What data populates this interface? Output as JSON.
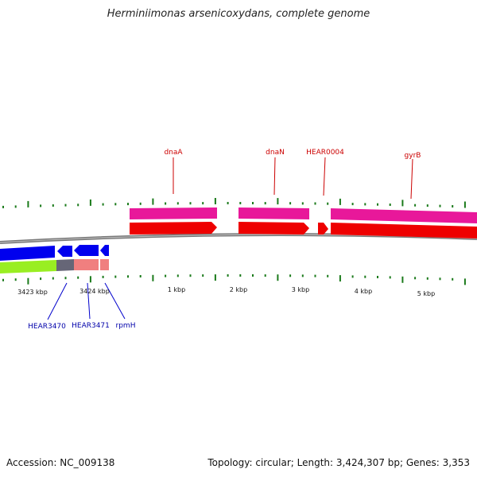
{
  "title": "Herminiimonas arsenicoxydans, complete genome",
  "footer": {
    "accession": "Accession: NC_009138",
    "summary": "Topology: circular; Length: 3,424,307 bp; Genes: 3,353"
  },
  "colors": {
    "forward_cds": "#ee0000",
    "forward_gene": "#e8189a",
    "reverse_cds": "#0000ee",
    "reverse_gene": "#99ee22",
    "trna_like": "#666677",
    "rpmH_band": "#f07f7f",
    "tick": "#1a7a1a",
    "backbone": "#888888",
    "forward_label": "#cc0000",
    "reverse_label": "#0000aa"
  },
  "scale_labels": [
    "3423 kbp",
    "3424 kbp",
    "1 kbp",
    "2 kbp",
    "3 kbp",
    "4 kbp",
    "5 kbp"
  ],
  "forward_labels": [
    {
      "name": "dnaA"
    },
    {
      "name": "dnaN"
    },
    {
      "name": "HEAR0004"
    },
    {
      "name": "gyrB"
    }
  ],
  "reverse_labels": [
    {
      "name": "HEAR3470"
    },
    {
      "name": "HEAR3471"
    },
    {
      "name": "rpmH"
    }
  ]
}
